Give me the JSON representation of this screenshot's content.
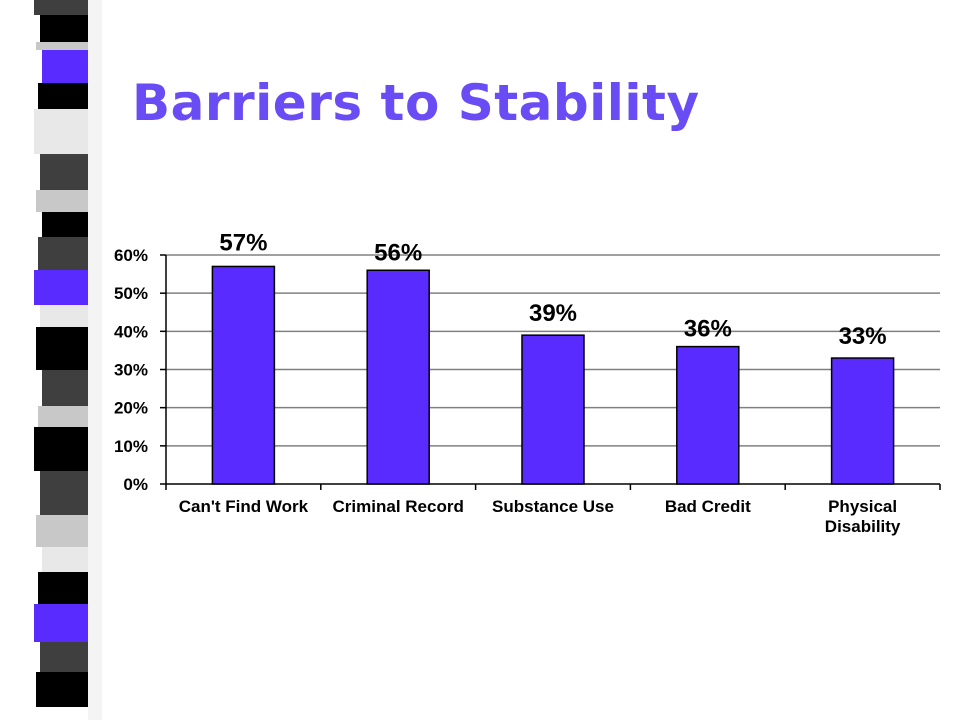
{
  "title": "Barriers to Stability",
  "colors": {
    "title": "#6a4cf5",
    "bar_fill": "#5a2bff",
    "bar_stroke": "#000000",
    "grid": "#808080",
    "strip_dark": "#000000",
    "strip_gray": "#3f3f3f",
    "strip_light": "#c8c8c8",
    "strip_white": "#e8e8e8",
    "strip_accent": "#5a2bff"
  },
  "chart_data": {
    "type": "bar",
    "categories": [
      "Can't Find Work",
      "Criminal Record",
      "Substance Use",
      "Bad Credit",
      "Physical Disability"
    ],
    "category_lines": [
      [
        "Can't Find Work"
      ],
      [
        "Criminal Record"
      ],
      [
        "Substance Use"
      ],
      [
        "Bad Credit"
      ],
      [
        "Physical",
        "Disability"
      ]
    ],
    "values": [
      57,
      56,
      39,
      36,
      33
    ],
    "data_labels": [
      "57%",
      "56%",
      "39%",
      "36%",
      "33%"
    ],
    "ylim": [
      0,
      60
    ],
    "yticks": [
      0,
      10,
      20,
      30,
      40,
      50,
      60
    ],
    "ytick_labels": [
      "0%",
      "10%",
      "20%",
      "30%",
      "40%",
      "50%",
      "60%"
    ],
    "grid": true,
    "legend": "none"
  }
}
